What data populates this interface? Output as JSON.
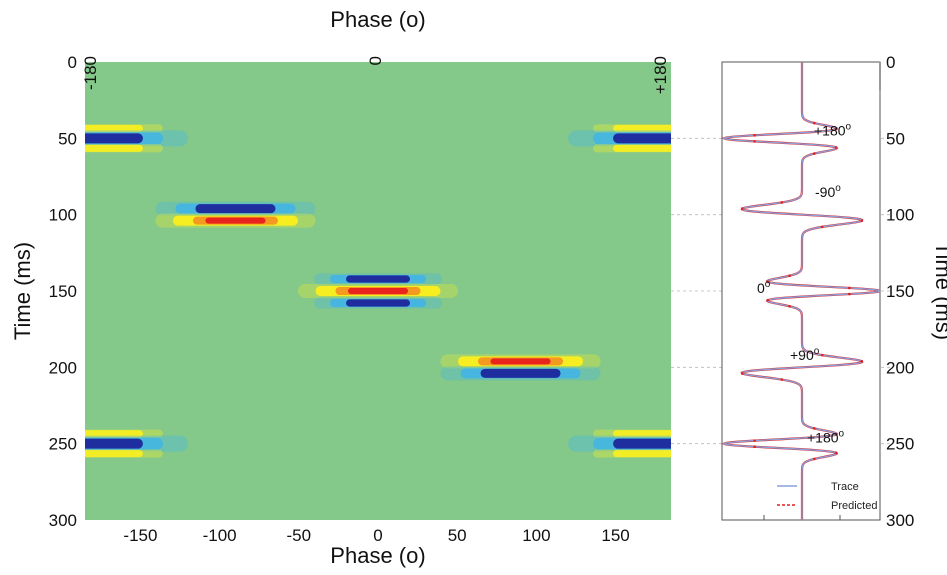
{
  "chart_data": [
    {
      "type": "heatmap",
      "title": "",
      "xlabel": "Phase (o)",
      "ylabel": "Time (ms)",
      "top_label": "Phase (o)",
      "xlim": [
        -185,
        185
      ],
      "ylim": [
        0,
        300
      ],
      "x_ticks": [
        -150,
        -100,
        -50,
        0,
        50,
        100,
        150
      ],
      "x_tick_labels": [
        "-150",
        "-100",
        "-50",
        "0",
        "50",
        "100",
        "150"
      ],
      "top_ticks": [
        -180,
        0,
        180
      ],
      "top_tick_labels": [
        "-180",
        "0",
        "+180"
      ],
      "y_ticks": [
        0,
        50,
        100,
        150,
        200,
        250,
        300
      ],
      "y_tick_labels": [
        "0",
        "50",
        "100",
        "150",
        "200",
        "250",
        "300"
      ],
      "background_color": "#84c98a",
      "colors": {
        "dark_blue": "#1f2e9e",
        "light_blue": "#3fb4ea",
        "yellow": "#f7ee22",
        "red": "#e8241c"
      },
      "events": [
        {
          "time": 50,
          "phase": 180,
          "color_order": [
            "yellow",
            "blue",
            "yellow"
          ]
        },
        {
          "time": 50,
          "phase": -180,
          "color_order": [
            "yellow",
            "blue",
            "yellow"
          ]
        },
        {
          "time": 100,
          "phase": -90,
          "color_order": [
            "blue",
            "red"
          ]
        },
        {
          "time": 150,
          "phase": 0,
          "color_order": [
            "blue",
            "red",
            "blue"
          ]
        },
        {
          "time": 200,
          "phase": 90,
          "color_order": [
            "red",
            "blue"
          ]
        },
        {
          "time": 250,
          "phase": 180,
          "color_order": [
            "yellow",
            "blue",
            "yellow"
          ]
        },
        {
          "time": 250,
          "phase": -180,
          "color_order": [
            "yellow",
            "blue",
            "yellow"
          ]
        }
      ]
    },
    {
      "type": "line",
      "title": "",
      "ylabel": "Time (ms)",
      "ylim": [
        0,
        300
      ],
      "y_ticks": [
        0,
        50,
        100,
        150,
        200,
        250,
        300
      ],
      "y_tick_labels": [
        "0",
        "50",
        "100",
        "150",
        "200",
        "250",
        "300"
      ],
      "series": [
        {
          "name": "Trace",
          "color": "#8aa0d8",
          "style": "solid"
        },
        {
          "name": "Predicted",
          "color": "#e02020",
          "style": "dashed"
        }
      ],
      "wavelets": [
        {
          "time": 50,
          "phase": 180
        },
        {
          "time": 100,
          "phase": -90
        },
        {
          "time": 150,
          "phase": 0
        },
        {
          "time": 200,
          "phase": 90
        },
        {
          "time": 250,
          "phase": 180
        }
      ],
      "annotations": [
        {
          "text": "+180o",
          "time": 45
        },
        {
          "text": "-90o",
          "time": 85
        },
        {
          "text": "0o",
          "time": 148
        },
        {
          "text": "+90o",
          "time": 192
        },
        {
          "text": "+180o",
          "time": 246
        }
      ],
      "legend": [
        "Trace",
        "Predicted"
      ],
      "legend_position": "bottom-right"
    }
  ]
}
